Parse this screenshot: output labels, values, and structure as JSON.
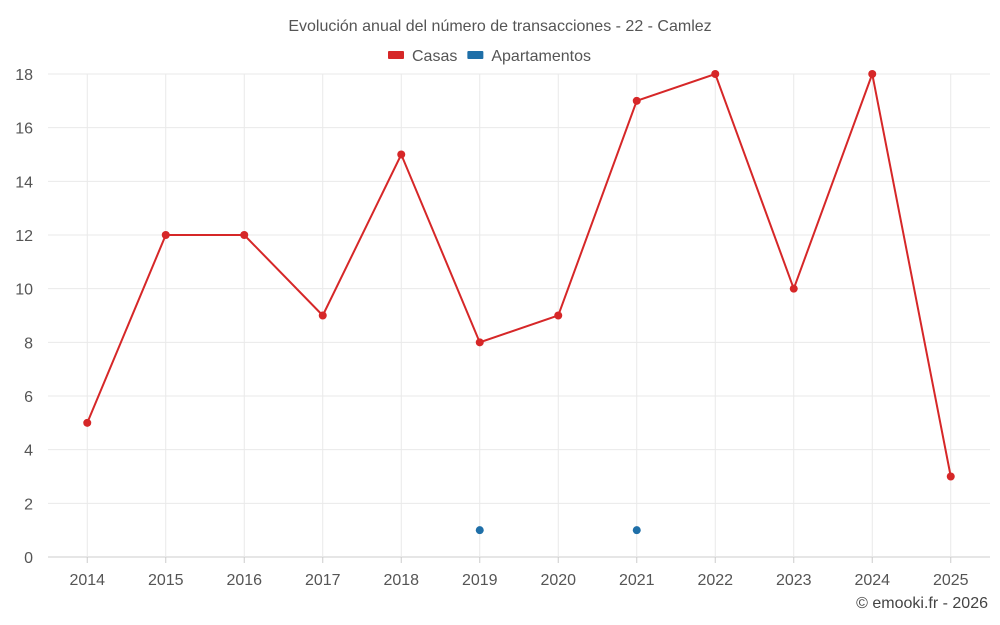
{
  "chart_data": {
    "type": "line",
    "title": "Evolución anual del número de transacciones - 22 - Camlez",
    "categories": [
      "2014",
      "2015",
      "2016",
      "2017",
      "2018",
      "2019",
      "2020",
      "2021",
      "2022",
      "2023",
      "2024",
      "2025"
    ],
    "series": [
      {
        "name": "Casas",
        "color": "#d62728",
        "values": [
          5,
          12,
          12,
          9,
          15,
          8,
          9,
          17,
          18,
          10,
          18,
          3
        ]
      },
      {
        "name": "Apartamentos",
        "color": "#1f6fa8",
        "values": [
          null,
          null,
          null,
          null,
          null,
          1,
          null,
          1,
          null,
          null,
          null,
          null
        ]
      }
    ],
    "ylim": [
      0,
      18
    ],
    "yticks": [
      0,
      2,
      4,
      6,
      8,
      10,
      12,
      14,
      16,
      18
    ],
    "xlabel": "",
    "ylabel": "",
    "grid": true,
    "legend": "top-center"
  },
  "footer": "© emooki.fr - 2026"
}
